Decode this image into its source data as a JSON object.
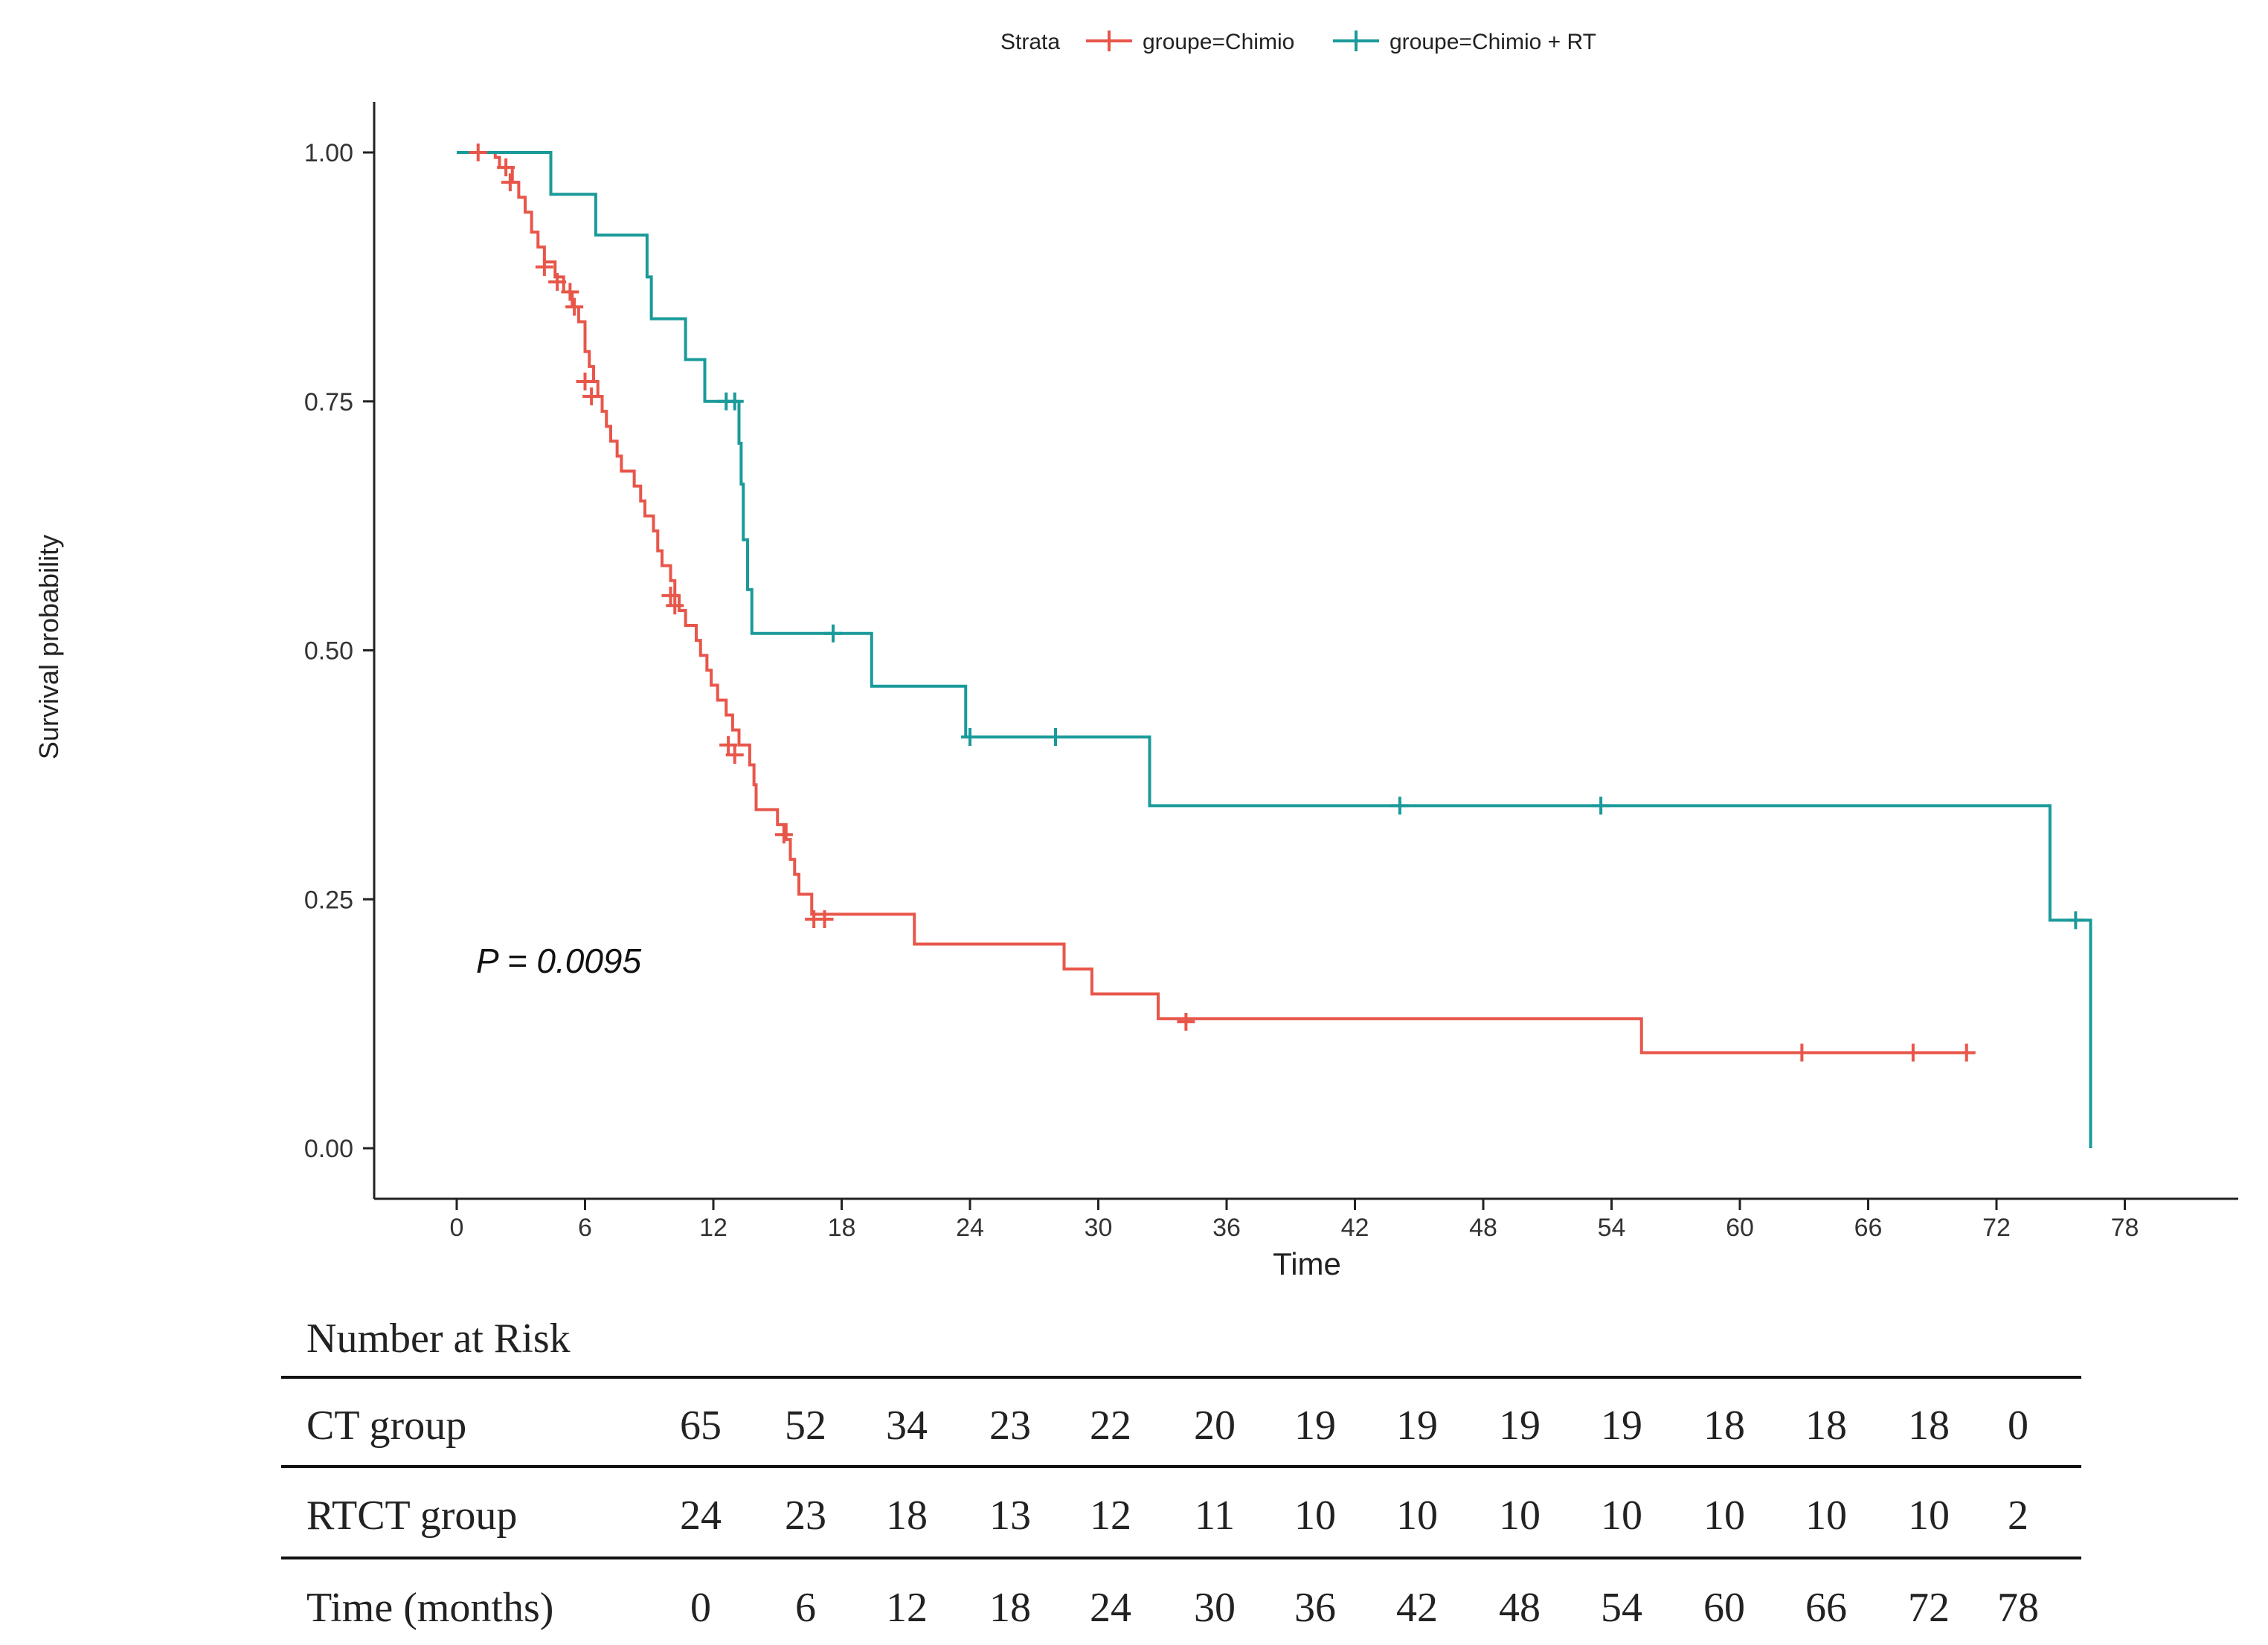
{
  "chart_data": {
    "type": "line",
    "subtype": "kaplan-meier-step",
    "legend": {
      "title": "Strata",
      "position": "top",
      "entries": [
        "groupe=Chimio",
        "groupe=Chimio + RT"
      ]
    },
    "xlabel": "Time",
    "ylabel": "Survival probability",
    "xlim": [
      0,
      78
    ],
    "ylim": [
      0,
      1
    ],
    "xticks": [
      0,
      6,
      12,
      18,
      24,
      30,
      36,
      42,
      48,
      54,
      60,
      66,
      72,
      78
    ],
    "yticks": [
      "0.00",
      "0.25",
      "0.50",
      "0.75",
      "1.00"
    ],
    "grid": false,
    "annotation": "P = 0.0095",
    "series": [
      {
        "name": "groupe=Chimio",
        "color": "#e8564a",
        "steps": [
          [
            0,
            1.0
          ],
          [
            1.2,
            1.0
          ],
          [
            1.8,
            0.995
          ],
          [
            2.0,
            0.985
          ],
          [
            2.6,
            0.97
          ],
          [
            2.9,
            0.955
          ],
          [
            3.2,
            0.94
          ],
          [
            3.5,
            0.92
          ],
          [
            3.8,
            0.905
          ],
          [
            4.1,
            0.89
          ],
          [
            4.6,
            0.875
          ],
          [
            5.0,
            0.86
          ],
          [
            5.4,
            0.845
          ],
          [
            5.7,
            0.83
          ],
          [
            6.0,
            0.8
          ],
          [
            6.2,
            0.785
          ],
          [
            6.4,
            0.77
          ],
          [
            6.6,
            0.755
          ],
          [
            6.8,
            0.74
          ],
          [
            7.0,
            0.725
          ],
          [
            7.2,
            0.71
          ],
          [
            7.5,
            0.695
          ],
          [
            7.7,
            0.68
          ],
          [
            8.3,
            0.665
          ],
          [
            8.6,
            0.65
          ],
          [
            8.8,
            0.635
          ],
          [
            9.2,
            0.62
          ],
          [
            9.4,
            0.6
          ],
          [
            9.6,
            0.585
          ],
          [
            10.0,
            0.57
          ],
          [
            10.2,
            0.555
          ],
          [
            10.4,
            0.54
          ],
          [
            10.7,
            0.525
          ],
          [
            11.2,
            0.51
          ],
          [
            11.4,
            0.495
          ],
          [
            11.7,
            0.48
          ],
          [
            11.9,
            0.465
          ],
          [
            12.2,
            0.45
          ],
          [
            12.6,
            0.435
          ],
          [
            12.9,
            0.42
          ],
          [
            13.2,
            0.405
          ],
          [
            13.7,
            0.385
          ],
          [
            13.9,
            0.365
          ],
          [
            14.0,
            0.34
          ],
          [
            15.0,
            0.325
          ],
          [
            15.4,
            0.31
          ],
          [
            15.6,
            0.29
          ],
          [
            15.8,
            0.275
          ],
          [
            16.0,
            0.255
          ],
          [
            16.6,
            0.235
          ],
          [
            21.4,
            0.205
          ],
          [
            28.4,
            0.18
          ],
          [
            29.7,
            0.155
          ],
          [
            32.8,
            0.13
          ],
          [
            55.4,
            0.096
          ],
          [
            70.6,
            0.096
          ]
        ],
        "censors": [
          [
            1.0,
            1.0
          ],
          [
            2.3,
            0.985
          ],
          [
            2.5,
            0.97
          ],
          [
            4.1,
            0.885
          ],
          [
            4.7,
            0.87
          ],
          [
            5.3,
            0.86
          ],
          [
            5.5,
            0.845
          ],
          [
            6.0,
            0.77
          ],
          [
            6.3,
            0.755
          ],
          [
            10.0,
            0.555
          ],
          [
            10.2,
            0.545
          ],
          [
            12.7,
            0.405
          ],
          [
            13.0,
            0.395
          ],
          [
            15.3,
            0.315
          ],
          [
            16.7,
            0.23
          ],
          [
            17.2,
            0.23
          ],
          [
            34.1,
            0.127
          ],
          [
            62.9,
            0.096
          ],
          [
            68.1,
            0.096
          ],
          [
            70.6,
            0.096
          ]
        ]
      },
      {
        "name": "groupe=Chimio + RT",
        "color": "#1a9a9a",
        "steps": [
          [
            0,
            1.0
          ],
          [
            4.4,
            0.958
          ],
          [
            6.5,
            0.917
          ],
          [
            8.9,
            0.875
          ],
          [
            9.1,
            0.833
          ],
          [
            10.7,
            0.792
          ],
          [
            11.6,
            0.75
          ],
          [
            13.2,
            0.708
          ],
          [
            13.3,
            0.667
          ],
          [
            13.4,
            0.611
          ],
          [
            13.6,
            0.561
          ],
          [
            13.8,
            0.517
          ],
          [
            19.4,
            0.464
          ],
          [
            23.8,
            0.413
          ],
          [
            32.4,
            0.344
          ],
          [
            74.5,
            0.229
          ],
          [
            76.4,
            0.0
          ]
        ],
        "censors": [
          [
            12.6,
            0.75
          ],
          [
            13.0,
            0.75
          ],
          [
            17.6,
            0.517
          ],
          [
            24.0,
            0.413
          ],
          [
            28.0,
            0.413
          ],
          [
            44.1,
            0.344
          ],
          [
            53.5,
            0.344
          ],
          [
            75.7,
            0.229
          ]
        ]
      }
    ]
  },
  "risk_table": {
    "title": "Number at Risk",
    "rows": [
      {
        "label": "CT group",
        "values": [
          "65",
          "52",
          "34",
          "23",
          "22",
          "20",
          "19",
          "19",
          "19",
          "19",
          "18",
          "18",
          "18",
          "0"
        ]
      },
      {
        "label": "RTCT group",
        "values": [
          "24",
          "23",
          "18",
          "13",
          "12",
          "11",
          "10",
          "10",
          "10",
          "10",
          "10",
          "10",
          "10",
          "2"
        ]
      },
      {
        "label": "Time (months)",
        "values": [
          "0",
          "6",
          "12",
          "18",
          "24",
          "30",
          "36",
          "42",
          "48",
          "54",
          "60",
          "66",
          "72",
          "78"
        ]
      }
    ]
  }
}
